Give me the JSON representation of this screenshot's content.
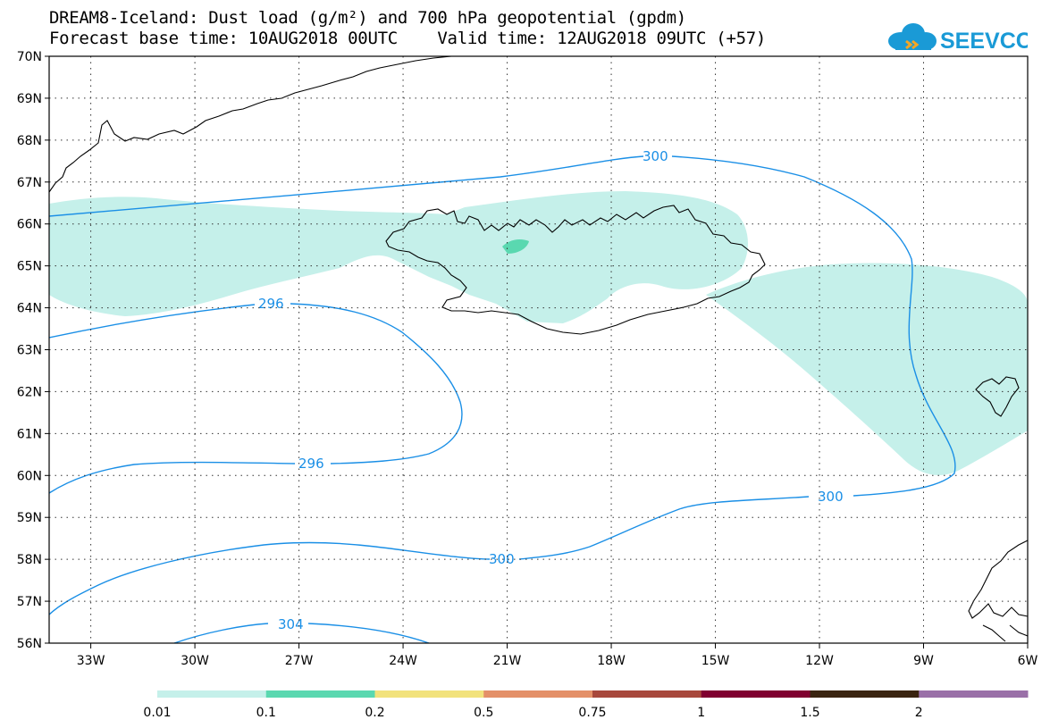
{
  "header": {
    "title_line1": "DREAM8-Iceland: Dust load (g/m²) and 700 hPa geopotential (gpdm)",
    "title_line2": "Forecast base time: 10AUG2018 00UTC    Valid time: 12AUG2018 09UTC (+57)",
    "logo_text": "SEEVCCC"
  },
  "map": {
    "lat_labels": [
      "70N",
      "69N",
      "68N",
      "67N",
      "66N",
      "65N",
      "64N",
      "63N",
      "62N",
      "61N",
      "60N",
      "59N",
      "58N",
      "57N",
      "56N"
    ],
    "lon_labels": [
      "33W",
      "30W",
      "27W",
      "24W",
      "21W",
      "18W",
      "15W",
      "12W",
      "9W",
      "6W"
    ],
    "lat_range": [
      56,
      70
    ],
    "lon_range": [
      -34.2,
      -6
    ],
    "grid": true,
    "contours": [
      {
        "value": "300",
        "label": "300"
      },
      {
        "value": "296",
        "label": "296"
      },
      {
        "value": "304",
        "label": "304"
      }
    ],
    "dust_fill_color": "#c5f0ea",
    "dust_high_color": "#5ad8b0",
    "contour_color": "#1a8fe6"
  },
  "colorbar": {
    "labels": [
      "0.01",
      "0.1",
      "0.2",
      "0.5",
      "0.75",
      "1",
      "1.5",
      "2"
    ],
    "colors": [
      "#c5f0ea",
      "#5ad8b0",
      "#f2e27c",
      "#e49068",
      "#a8483c",
      "#800030",
      "#3a2410",
      "#9a70a8"
    ]
  }
}
